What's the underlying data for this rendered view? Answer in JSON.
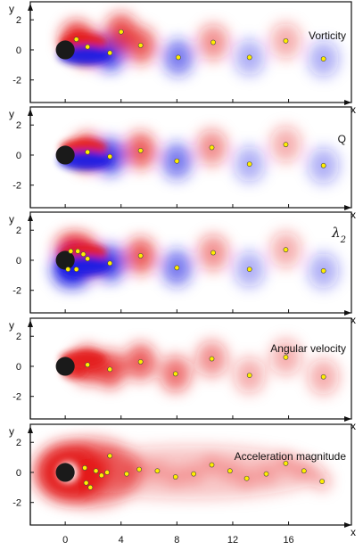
{
  "chart_data": [
    {
      "type": "heatmap",
      "title": "Vorticity",
      "xlabel": "x",
      "ylabel": "y",
      "xlim": [
        -2.5,
        20.5
      ],
      "ylim": [
        -3.5,
        3.2
      ],
      "xticks": [
        "0",
        "4",
        "8",
        "12",
        "16"
      ],
      "yticks": [
        "2",
        "0",
        "-2"
      ],
      "cylinder": {
        "x": 0,
        "y": 0,
        "r": 0.5
      },
      "fill": "signed",
      "vortex_centers": [
        {
          "x": 0.8,
          "y": 0.7
        },
        {
          "x": 1.6,
          "y": 0.2
        },
        {
          "x": 3.2,
          "y": -0.2
        },
        {
          "x": 4.0,
          "y": 1.2
        },
        {
          "x": 5.4,
          "y": 0.3
        },
        {
          "x": 8.1,
          "y": -0.5
        },
        {
          "x": 10.6,
          "y": 0.5
        },
        {
          "x": 13.2,
          "y": -0.5
        },
        {
          "x": 15.8,
          "y": 0.6
        },
        {
          "x": 18.5,
          "y": -0.6
        }
      ]
    },
    {
      "type": "heatmap",
      "title": "Q",
      "xlabel": "x",
      "ylabel": "y",
      "xlim": [
        -2.5,
        20.5
      ],
      "ylim": [
        -3.5,
        3.2
      ],
      "xticks": [
        "0",
        "4",
        "8",
        "12",
        "16"
      ],
      "yticks": [
        "2",
        "0",
        "-2"
      ],
      "cylinder": {
        "x": 0,
        "y": 0,
        "r": 0.5
      },
      "fill": "signed",
      "vortex_centers": [
        {
          "x": 1.6,
          "y": 0.2
        },
        {
          "x": 3.2,
          "y": -0.1
        },
        {
          "x": 5.4,
          "y": 0.3
        },
        {
          "x": 8.0,
          "y": -0.4
        },
        {
          "x": 10.5,
          "y": 0.5
        },
        {
          "x": 13.2,
          "y": -0.6
        },
        {
          "x": 15.8,
          "y": 0.7
        },
        {
          "x": 18.5,
          "y": -0.7
        }
      ]
    },
    {
      "type": "heatmap",
      "title": "λ2",
      "xlabel": "x",
      "ylabel": "y",
      "xlim": [
        -2.5,
        20.5
      ],
      "ylim": [
        -3.5,
        3.2
      ],
      "xticks": [
        "0",
        "4",
        "8",
        "12",
        "16"
      ],
      "yticks": [
        "2",
        "0",
        "-2"
      ],
      "cylinder": {
        "x": 0,
        "y": 0,
        "r": 0.5
      },
      "fill": "signed",
      "vortex_centers": [
        {
          "x": 0.4,
          "y": 0.6
        },
        {
          "x": 0.9,
          "y": 0.6
        },
        {
          "x": 1.3,
          "y": 0.4
        },
        {
          "x": 1.6,
          "y": 0.1
        },
        {
          "x": 0.2,
          "y": -0.6
        },
        {
          "x": 0.8,
          "y": -0.6
        },
        {
          "x": 3.2,
          "y": -0.2
        },
        {
          "x": 5.4,
          "y": 0.3
        },
        {
          "x": 8.0,
          "y": -0.5
        },
        {
          "x": 10.6,
          "y": 0.5
        },
        {
          "x": 13.2,
          "y": -0.6
        },
        {
          "x": 15.8,
          "y": 0.7
        },
        {
          "x": 18.5,
          "y": -0.7
        }
      ]
    },
    {
      "type": "heatmap",
      "title": "Angular velocity",
      "xlabel": "x",
      "ylabel": "y",
      "xlim": [
        -2.5,
        20.5
      ],
      "ylim": [
        -3.5,
        3.2
      ],
      "xticks": [
        "0",
        "4",
        "8",
        "12",
        "16"
      ],
      "yticks": [
        "2",
        "0",
        "-2"
      ],
      "cylinder": {
        "x": 0,
        "y": 0,
        "r": 0.5
      },
      "fill": "positive",
      "vortex_centers": [
        {
          "x": 1.6,
          "y": 0.1
        },
        {
          "x": 3.2,
          "y": -0.2
        },
        {
          "x": 5.4,
          "y": 0.3
        },
        {
          "x": 7.9,
          "y": -0.5
        },
        {
          "x": 10.5,
          "y": 0.5
        },
        {
          "x": 13.2,
          "y": -0.6
        },
        {
          "x": 15.8,
          "y": 0.6
        },
        {
          "x": 18.5,
          "y": -0.7
        }
      ]
    },
    {
      "type": "heatmap",
      "title": "Acceleration magnitude",
      "xlabel": "x",
      "ylabel": "y",
      "xlim": [
        -2.5,
        20.5
      ],
      "ylim": [
        -3.5,
        3.2
      ],
      "xticks": [
        "0",
        "4",
        "8",
        "12",
        "16"
      ],
      "yticks": [
        "2",
        "0",
        "-2"
      ],
      "cylinder": {
        "x": 0,
        "y": 0,
        "r": 0.5
      },
      "fill": "magnitude",
      "vortex_centers": [
        {
          "x": 1.4,
          "y": 0.3
        },
        {
          "x": 2.2,
          "y": 0.1
        },
        {
          "x": 3.2,
          "y": 1.1
        },
        {
          "x": 3.0,
          "y": 0.0
        },
        {
          "x": 1.5,
          "y": -0.7
        },
        {
          "x": 1.8,
          "y": -1.0
        },
        {
          "x": 2.6,
          "y": -0.2
        },
        {
          "x": 4.4,
          "y": -0.1
        },
        {
          "x": 5.3,
          "y": 0.2
        },
        {
          "x": 6.6,
          "y": 0.1
        },
        {
          "x": 7.9,
          "y": -0.3
        },
        {
          "x": 9.2,
          "y": -0.1
        },
        {
          "x": 10.5,
          "y": 0.5
        },
        {
          "x": 11.8,
          "y": 0.1
        },
        {
          "x": 13.0,
          "y": -0.4
        },
        {
          "x": 14.4,
          "y": -0.1
        },
        {
          "x": 15.8,
          "y": 0.6
        },
        {
          "x": 17.1,
          "y": 0.1
        },
        {
          "x": 18.4,
          "y": -0.6
        }
      ]
    }
  ]
}
